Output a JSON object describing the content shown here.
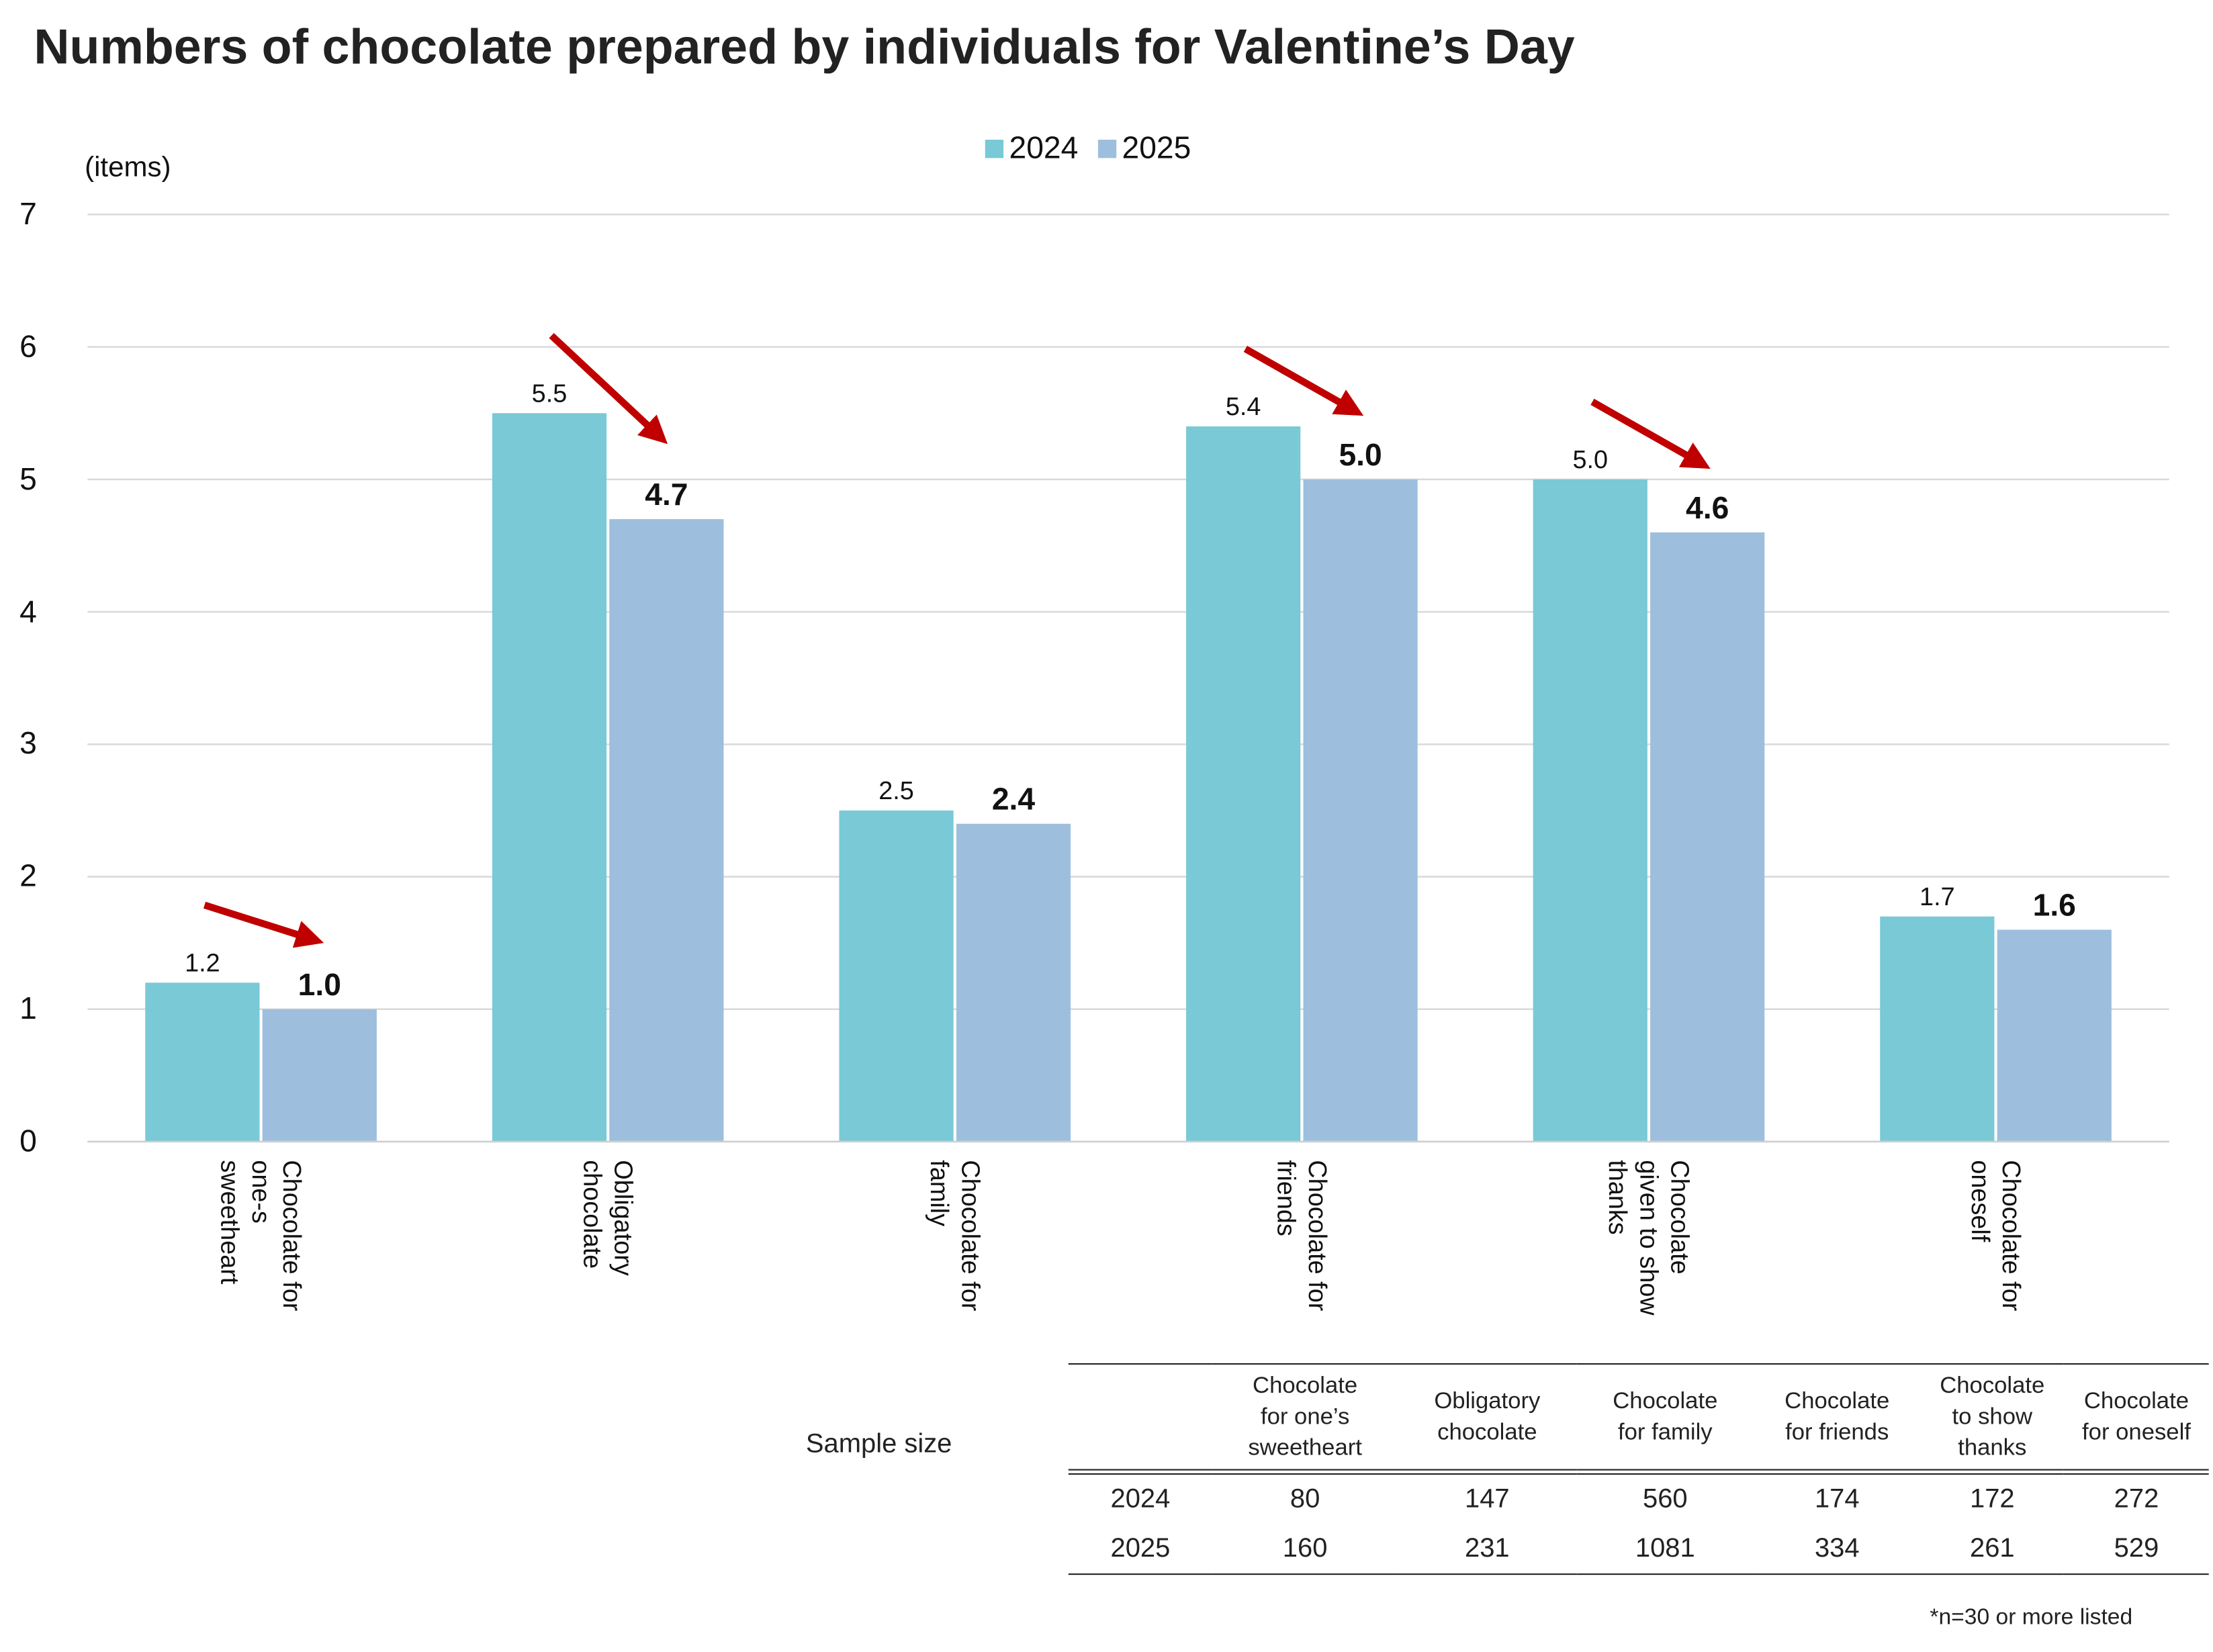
{
  "chart_data": {
    "type": "bar",
    "title": "Numbers of chocolate prepared by individuals for Valentine’s Day",
    "ylabel": "(items)",
    "xlabel": "",
    "ylim": [
      0,
      7
    ],
    "yticks": [
      "0",
      "1",
      "2",
      "3",
      "4",
      "5",
      "6",
      "7"
    ],
    "grid": true,
    "legend_position": "top-center",
    "categories": [
      "Chocolate for\none-s\nsweetheart",
      "Obligatory\nchocolate",
      "Chocolate for\nfamily",
      "Chocolate for\nfriends",
      "Chocolate\ngiven to show\nthanks",
      "Chocolate for\noneself"
    ],
    "series": [
      {
        "name": "2024",
        "color": "#79c9d6",
        "values": [
          1.2,
          5.5,
          2.5,
          5.4,
          5.0,
          1.7
        ],
        "labels": [
          "1.2",
          "5.5",
          "2.5",
          "5.4",
          "5.0",
          "1.7"
        ]
      },
      {
        "name": "2025",
        "color": "#9dbfdd",
        "values": [
          1.0,
          4.7,
          2.4,
          5.0,
          4.6,
          1.6
        ],
        "labels": [
          "1.0",
          "4.7",
          "2.4",
          "5.0",
          "4.6",
          "1.6"
        ]
      }
    ],
    "decline_arrow_categories": [
      0,
      1,
      3,
      4
    ],
    "arrow_color": "#c00000"
  },
  "sample_table": {
    "label": "Sample size",
    "headers": [
      "Chocolate for one’s sweetheart",
      "Obligatory chocolate",
      "Chocolate for family",
      "Chocolate for friends",
      "Chocolate to show thanks",
      "Chocolate for oneself"
    ],
    "rows": [
      {
        "year": "2024",
        "values": [
          "80",
          "147",
          "560",
          "174",
          "172",
          "272"
        ]
      },
      {
        "year": "2025",
        "values": [
          "160",
          "231",
          "1081",
          "334",
          "261",
          "529"
        ]
      }
    ],
    "footnote": "*n=30 or more listed"
  }
}
